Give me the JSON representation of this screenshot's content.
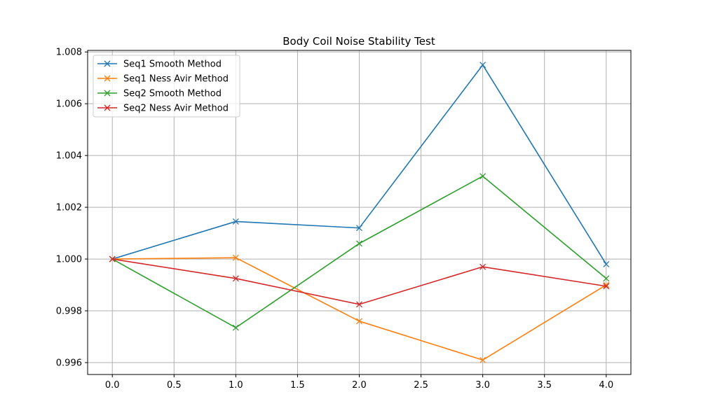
{
  "chart_data": {
    "type": "line",
    "title": "Body Coil Noise Stability Test",
    "xlabel": "",
    "ylabel": "",
    "xlim": [
      -0.2,
      4.2
    ],
    "ylim": [
      0.99554,
      1.00806
    ],
    "x_ticks": [
      0.0,
      0.5,
      1.0,
      1.5,
      2.0,
      2.5,
      3.0,
      3.5,
      4.0
    ],
    "x_tick_labels": [
      "0.0",
      "0.5",
      "1.0",
      "1.5",
      "2.0",
      "2.5",
      "3.0",
      "3.5",
      "4.0"
    ],
    "y_ticks": [
      0.996,
      0.998,
      1.0,
      1.002,
      1.004,
      1.006,
      1.008
    ],
    "y_tick_labels": [
      "0.996",
      "0.998",
      "1.000",
      "1.002",
      "1.004",
      "1.006",
      "1.008"
    ],
    "grid": true,
    "legend_position": "top-left",
    "marker": "x",
    "x": [
      0,
      1,
      2,
      3,
      4
    ],
    "series": [
      {
        "name": "Seq1 Smooth Method",
        "color": "#1f77b4",
        "values": [
          1.0,
          1.00145,
          1.0012,
          1.0075,
          0.9998
        ]
      },
      {
        "name": "Seq1 Ness Avir Method",
        "color": "#ff7f0e",
        "values": [
          1.0,
          1.00005,
          0.9976,
          0.9961,
          0.999
        ]
      },
      {
        "name": "Seq2 Smooth Method",
        "color": "#2ca02c",
        "values": [
          1.0,
          0.99735,
          1.0006,
          1.0032,
          0.99925
        ]
      },
      {
        "name": "Seq2 Ness Avir Method",
        "color": "#d62728",
        "values": [
          1.0,
          0.99925,
          0.99825,
          0.9997,
          0.99895
        ]
      }
    ]
  }
}
